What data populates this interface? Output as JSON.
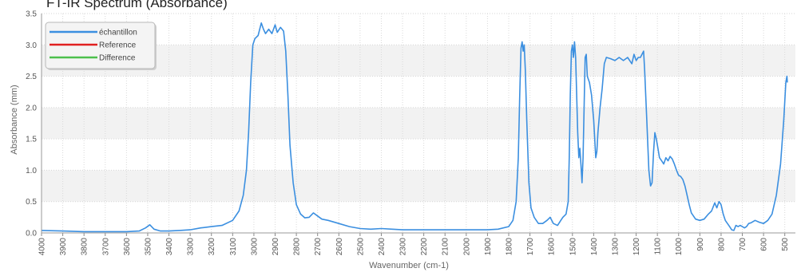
{
  "title": "FT-IR Spectrum (Absorbance)",
  "chart_data": {
    "type": "line",
    "title": "FT-IR Spectrum (Absorbance)",
    "xlabel": "Wavenumber (cm-1)",
    "ylabel": "Absorbance (mm)",
    "xlim": [
      4000,
      450
    ],
    "ylim": [
      0,
      3.5
    ],
    "x_ticks": [
      4000,
      3900,
      3800,
      3700,
      3600,
      3500,
      3400,
      3300,
      3200,
      3100,
      3000,
      2900,
      2800,
      2700,
      2600,
      2500,
      2400,
      2300,
      2200,
      2100,
      2000,
      1900,
      1800,
      1700,
      1600,
      1500,
      1400,
      1300,
      1200,
      1100,
      1000,
      900,
      800,
      700,
      600,
      500
    ],
    "y_ticks": [
      "0.0",
      "0.5",
      "1.0",
      "1.5",
      "2.0",
      "2.5",
      "3.0",
      "3.5"
    ],
    "y_tick_values": [
      0,
      0.5,
      1.0,
      1.5,
      2.0,
      2.5,
      3.0,
      3.5
    ],
    "grid": true,
    "legend_position": "top-left",
    "series": [
      {
        "name": "échantillon",
        "color": "#3b8fe0",
        "points": [
          [
            4000,
            0.04
          ],
          [
            3900,
            0.03
          ],
          [
            3800,
            0.02
          ],
          [
            3700,
            0.02
          ],
          [
            3600,
            0.02
          ],
          [
            3540,
            0.03
          ],
          [
            3510,
            0.08
          ],
          [
            3490,
            0.13
          ],
          [
            3470,
            0.06
          ],
          [
            3440,
            0.03
          ],
          [
            3400,
            0.03
          ],
          [
            3350,
            0.04
          ],
          [
            3300,
            0.05
          ],
          [
            3250,
            0.08
          ],
          [
            3200,
            0.1
          ],
          [
            3150,
            0.12
          ],
          [
            3100,
            0.2
          ],
          [
            3070,
            0.35
          ],
          [
            3050,
            0.6
          ],
          [
            3035,
            1.0
          ],
          [
            3025,
            1.6
          ],
          [
            3015,
            2.4
          ],
          [
            3005,
            3.0
          ],
          [
            2995,
            3.1
          ],
          [
            2980,
            3.15
          ],
          [
            2965,
            3.35
          ],
          [
            2955,
            3.25
          ],
          [
            2945,
            3.18
          ],
          [
            2930,
            3.25
          ],
          [
            2915,
            3.18
          ],
          [
            2900,
            3.32
          ],
          [
            2890,
            3.2
          ],
          [
            2875,
            3.28
          ],
          [
            2860,
            3.22
          ],
          [
            2850,
            2.9
          ],
          [
            2840,
            2.2
          ],
          [
            2830,
            1.4
          ],
          [
            2815,
            0.8
          ],
          [
            2800,
            0.45
          ],
          [
            2780,
            0.3
          ],
          [
            2760,
            0.24
          ],
          [
            2740,
            0.25
          ],
          [
            2720,
            0.32
          ],
          [
            2700,
            0.27
          ],
          [
            2680,
            0.22
          ],
          [
            2650,
            0.2
          ],
          [
            2600,
            0.15
          ],
          [
            2550,
            0.1
          ],
          [
            2500,
            0.07
          ],
          [
            2450,
            0.06
          ],
          [
            2400,
            0.07
          ],
          [
            2350,
            0.06
          ],
          [
            2300,
            0.05
          ],
          [
            2200,
            0.05
          ],
          [
            2100,
            0.05
          ],
          [
            2000,
            0.05
          ],
          [
            1900,
            0.05
          ],
          [
            1850,
            0.06
          ],
          [
            1800,
            0.1
          ],
          [
            1780,
            0.2
          ],
          [
            1765,
            0.5
          ],
          [
            1755,
            1.2
          ],
          [
            1748,
            2.2
          ],
          [
            1742,
            2.95
          ],
          [
            1737,
            3.05
          ],
          [
            1732,
            2.9
          ],
          [
            1727,
            3.0
          ],
          [
            1722,
            2.6
          ],
          [
            1715,
            1.8
          ],
          [
            1705,
            0.8
          ],
          [
            1695,
            0.4
          ],
          [
            1680,
            0.25
          ],
          [
            1660,
            0.15
          ],
          [
            1640,
            0.15
          ],
          [
            1620,
            0.2
          ],
          [
            1605,
            0.25
          ],
          [
            1590,
            0.15
          ],
          [
            1570,
            0.12
          ],
          [
            1555,
            0.2
          ],
          [
            1545,
            0.25
          ],
          [
            1530,
            0.3
          ],
          [
            1520,
            0.5
          ],
          [
            1515,
            1.2
          ],
          [
            1510,
            2.2
          ],
          [
            1505,
            2.9
          ],
          [
            1500,
            3.0
          ],
          [
            1495,
            2.8
          ],
          [
            1490,
            3.05
          ],
          [
            1485,
            2.8
          ],
          [
            1480,
            2.2
          ],
          [
            1475,
            1.6
          ],
          [
            1470,
            1.2
          ],
          [
            1465,
            1.35
          ],
          [
            1460,
            1.1
          ],
          [
            1455,
            0.8
          ],
          [
            1450,
            1.2
          ],
          [
            1445,
            2.0
          ],
          [
            1440,
            2.8
          ],
          [
            1435,
            2.85
          ],
          [
            1430,
            2.5
          ],
          [
            1420,
            2.4
          ],
          [
            1410,
            2.2
          ],
          [
            1400,
            1.8
          ],
          [
            1395,
            1.5
          ],
          [
            1390,
            1.2
          ],
          [
            1385,
            1.3
          ],
          [
            1380,
            1.6
          ],
          [
            1370,
            2.0
          ],
          [
            1360,
            2.3
          ],
          [
            1350,
            2.7
          ],
          [
            1340,
            2.8
          ],
          [
            1320,
            2.78
          ],
          [
            1300,
            2.75
          ],
          [
            1280,
            2.8
          ],
          [
            1260,
            2.75
          ],
          [
            1240,
            2.8
          ],
          [
            1220,
            2.7
          ],
          [
            1210,
            2.85
          ],
          [
            1200,
            2.75
          ],
          [
            1190,
            2.8
          ],
          [
            1180,
            2.8
          ],
          [
            1165,
            2.9
          ],
          [
            1160,
            2.6
          ],
          [
            1150,
            1.8
          ],
          [
            1140,
            1.0
          ],
          [
            1132,
            0.75
          ],
          [
            1125,
            0.8
          ],
          [
            1118,
            1.3
          ],
          [
            1112,
            1.6
          ],
          [
            1105,
            1.5
          ],
          [
            1100,
            1.4
          ],
          [
            1090,
            1.2
          ],
          [
            1080,
            1.15
          ],
          [
            1070,
            1.1
          ],
          [
            1060,
            1.2
          ],
          [
            1050,
            1.15
          ],
          [
            1040,
            1.22
          ],
          [
            1030,
            1.18
          ],
          [
            1020,
            1.1
          ],
          [
            1010,
            1.0
          ],
          [
            1000,
            0.92
          ],
          [
            990,
            0.9
          ],
          [
            980,
            0.85
          ],
          [
            970,
            0.75
          ],
          [
            960,
            0.6
          ],
          [
            950,
            0.45
          ],
          [
            940,
            0.32
          ],
          [
            920,
            0.22
          ],
          [
            900,
            0.2
          ],
          [
            880,
            0.22
          ],
          [
            860,
            0.3
          ],
          [
            845,
            0.35
          ],
          [
            830,
            0.48
          ],
          [
            820,
            0.4
          ],
          [
            810,
            0.5
          ],
          [
            800,
            0.45
          ],
          [
            790,
            0.3
          ],
          [
            780,
            0.2
          ],
          [
            770,
            0.15
          ],
          [
            760,
            0.1
          ],
          [
            750,
            0.05
          ],
          [
            740,
            0.04
          ],
          [
            730,
            0.12
          ],
          [
            720,
            0.1
          ],
          [
            710,
            0.12
          ],
          [
            700,
            0.1
          ],
          [
            690,
            0.08
          ],
          [
            680,
            0.1
          ],
          [
            670,
            0.15
          ],
          [
            660,
            0.16
          ],
          [
            640,
            0.2
          ],
          [
            620,
            0.17
          ],
          [
            600,
            0.15
          ],
          [
            580,
            0.2
          ],
          [
            560,
            0.3
          ],
          [
            540,
            0.6
          ],
          [
            520,
            1.1
          ],
          [
            505,
            1.8
          ],
          [
            495,
            2.4
          ],
          [
            490,
            2.5
          ],
          [
            488,
            2.4
          ]
        ]
      },
      {
        "name": "Reference",
        "color": "#e02020",
        "points": []
      },
      {
        "name": "Difference",
        "color": "#4cc04c",
        "points": []
      }
    ]
  }
}
